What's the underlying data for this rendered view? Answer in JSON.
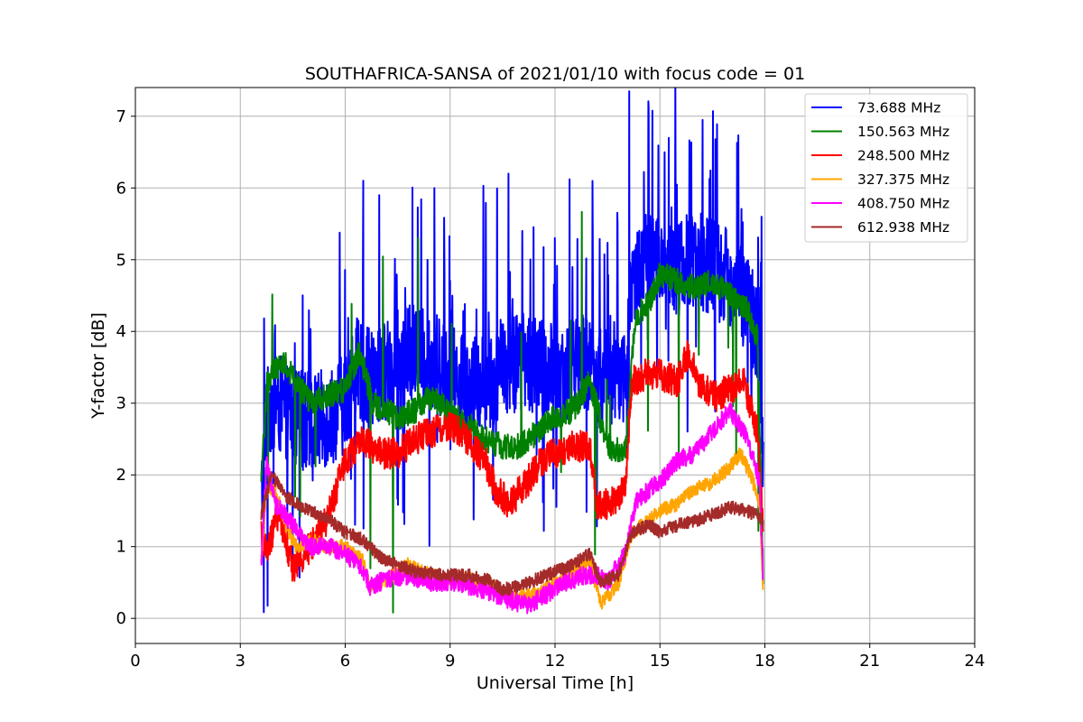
{
  "chart_data": {
    "type": "line",
    "title": "SOUTHAFRICA-SANSA of 2021/01/10 with focus code = 01",
    "xlabel": "Universal Time [h]",
    "ylabel": "Y-factor [dB]",
    "xlim": [
      0,
      24
    ],
    "ylim": [
      -0.35,
      7.4
    ],
    "xticks": [
      0,
      3,
      6,
      9,
      12,
      15,
      18,
      21,
      24
    ],
    "xtick_labels": [
      "0",
      "3",
      "6",
      "9",
      "12",
      "15",
      "18",
      "21",
      "24"
    ],
    "yticks": [
      0,
      1,
      2,
      3,
      4,
      5,
      6,
      7
    ],
    "ytick_labels": [
      "0",
      "1",
      "2",
      "3",
      "4",
      "5",
      "6",
      "7"
    ],
    "grid": true,
    "legend_position": "top-right",
    "series": [
      {
        "name": " 73.688 MHz",
        "color": "#0000ff",
        "noise": 0.7,
        "spikes": 0.09,
        "points": [
          [
            3.6,
            1.6
          ],
          [
            3.75,
            3.0
          ],
          [
            4.2,
            2.95
          ],
          [
            5.0,
            2.7
          ],
          [
            5.5,
            2.8
          ],
          [
            6.0,
            3.0
          ],
          [
            6.3,
            3.5
          ],
          [
            6.8,
            3.3
          ],
          [
            7.5,
            3.6
          ],
          [
            8.0,
            3.7
          ],
          [
            8.5,
            3.6
          ],
          [
            9.0,
            3.4
          ],
          [
            9.5,
            3.2
          ],
          [
            10.0,
            3.3
          ],
          [
            10.5,
            3.5
          ],
          [
            11.0,
            3.6
          ],
          [
            11.5,
            3.5
          ],
          [
            12.0,
            3.4
          ],
          [
            12.5,
            3.5
          ],
          [
            13.0,
            3.6
          ],
          [
            13.5,
            3.3
          ],
          [
            14.0,
            3.4
          ],
          [
            14.15,
            4.6
          ],
          [
            14.6,
            5.0
          ],
          [
            15.0,
            5.0
          ],
          [
            15.5,
            4.9
          ],
          [
            16.0,
            5.0
          ],
          [
            16.5,
            4.9
          ],
          [
            17.0,
            4.7
          ],
          [
            17.5,
            4.4
          ],
          [
            17.8,
            4.0
          ],
          [
            17.95,
            2.2
          ]
        ]
      },
      {
        "name": "150.563 MHz",
        "color": "#008000",
        "noise": 0.18,
        "spikes": 0.02,
        "points": [
          [
            3.6,
            1.8
          ],
          [
            3.75,
            3.3
          ],
          [
            4.2,
            3.6
          ],
          [
            4.6,
            3.3
          ],
          [
            5.0,
            3.0
          ],
          [
            5.5,
            3.1
          ],
          [
            6.0,
            3.2
          ],
          [
            6.4,
            3.7
          ],
          [
            6.8,
            3.0
          ],
          [
            7.5,
            2.8
          ],
          [
            8.0,
            2.9
          ],
          [
            8.5,
            3.1
          ],
          [
            9.0,
            2.85
          ],
          [
            9.5,
            2.7
          ],
          [
            10.0,
            2.5
          ],
          [
            10.5,
            2.4
          ],
          [
            11.0,
            2.4
          ],
          [
            11.5,
            2.6
          ],
          [
            12.0,
            2.8
          ],
          [
            12.5,
            2.9
          ],
          [
            13.0,
            3.3
          ],
          [
            13.5,
            2.4
          ],
          [
            14.0,
            2.3
          ],
          [
            14.3,
            4.2
          ],
          [
            14.7,
            4.4
          ],
          [
            15.0,
            4.8
          ],
          [
            15.5,
            4.7
          ],
          [
            16.0,
            4.6
          ],
          [
            16.5,
            4.7
          ],
          [
            17.0,
            4.5
          ],
          [
            17.5,
            4.3
          ],
          [
            17.8,
            3.9
          ],
          [
            17.95,
            0.6
          ]
        ]
      },
      {
        "name": "248.500 MHz",
        "color": "#ff0000",
        "noise": 0.22,
        "spikes": 0.0,
        "points": [
          [
            3.6,
            1.2
          ],
          [
            3.75,
            0.9
          ],
          [
            4.1,
            1.5
          ],
          [
            4.5,
            0.7
          ],
          [
            5.0,
            1.0
          ],
          [
            5.5,
            1.4
          ],
          [
            6.0,
            2.2
          ],
          [
            6.5,
            2.5
          ],
          [
            7.0,
            2.3
          ],
          [
            7.5,
            2.3
          ],
          [
            8.0,
            2.5
          ],
          [
            8.5,
            2.6
          ],
          [
            9.0,
            2.7
          ],
          [
            9.5,
            2.5
          ],
          [
            10.0,
            2.2
          ],
          [
            10.3,
            1.8
          ],
          [
            10.7,
            1.6
          ],
          [
            11.2,
            1.9
          ],
          [
            11.6,
            2.2
          ],
          [
            12.0,
            2.3
          ],
          [
            12.5,
            2.4
          ],
          [
            13.0,
            2.4
          ],
          [
            13.2,
            1.6
          ],
          [
            13.6,
            1.6
          ],
          [
            14.0,
            1.8
          ],
          [
            14.2,
            3.3
          ],
          [
            14.6,
            3.4
          ],
          [
            15.0,
            3.4
          ],
          [
            15.5,
            3.3
          ],
          [
            15.8,
            3.7
          ],
          [
            16.2,
            3.2
          ],
          [
            16.6,
            3.1
          ],
          [
            17.0,
            3.2
          ],
          [
            17.4,
            3.3
          ],
          [
            17.8,
            2.6
          ],
          [
            17.95,
            1.3
          ]
        ]
      },
      {
        "name": "327.375 MHz",
        "color": "#ffa500",
        "noise": 0.1,
        "spikes": 0.0,
        "points": [
          [
            3.6,
            0.8
          ],
          [
            3.75,
            1.8
          ],
          [
            4.0,
            1.8
          ],
          [
            4.3,
            1.3
          ],
          [
            4.6,
            1.0
          ],
          [
            5.0,
            1.1
          ],
          [
            5.5,
            1.0
          ],
          [
            6.0,
            1.0
          ],
          [
            6.5,
            0.8
          ],
          [
            6.7,
            0.45
          ],
          [
            7.2,
            0.55
          ],
          [
            7.8,
            0.75
          ],
          [
            8.2,
            0.65
          ],
          [
            8.8,
            0.55
          ],
          [
            9.5,
            0.55
          ],
          [
            10.0,
            0.5
          ],
          [
            10.5,
            0.35
          ],
          [
            11.0,
            0.3
          ],
          [
            11.5,
            0.35
          ],
          [
            12.0,
            0.5
          ],
          [
            12.5,
            0.65
          ],
          [
            13.0,
            0.8
          ],
          [
            13.3,
            0.2
          ],
          [
            13.8,
            0.45
          ],
          [
            14.2,
            1.2
          ],
          [
            14.5,
            1.3
          ],
          [
            15.0,
            1.5
          ],
          [
            15.5,
            1.6
          ],
          [
            16.0,
            1.8
          ],
          [
            16.5,
            1.9
          ],
          [
            17.0,
            2.1
          ],
          [
            17.3,
            2.3
          ],
          [
            17.6,
            2.0
          ],
          [
            17.85,
            1.6
          ],
          [
            17.95,
            0.4
          ]
        ]
      },
      {
        "name": "408.750 MHz",
        "color": "#ff00ff",
        "noise": 0.13,
        "spikes": 0.0,
        "points": [
          [
            3.6,
            0.7
          ],
          [
            3.75,
            2.2
          ],
          [
            4.0,
            1.6
          ],
          [
            4.5,
            1.3
          ],
          [
            5.0,
            1.0
          ],
          [
            5.5,
            1.0
          ],
          [
            6.0,
            0.9
          ],
          [
            6.5,
            0.7
          ],
          [
            6.7,
            0.45
          ],
          [
            7.2,
            0.55
          ],
          [
            7.8,
            0.6
          ],
          [
            8.5,
            0.5
          ],
          [
            9.0,
            0.5
          ],
          [
            9.5,
            0.45
          ],
          [
            10.0,
            0.4
          ],
          [
            10.5,
            0.3
          ],
          [
            11.0,
            0.2
          ],
          [
            11.3,
            0.2
          ],
          [
            11.8,
            0.35
          ],
          [
            12.3,
            0.5
          ],
          [
            12.8,
            0.6
          ],
          [
            13.2,
            0.6
          ],
          [
            13.5,
            0.5
          ],
          [
            14.0,
            0.9
          ],
          [
            14.3,
            1.6
          ],
          [
            14.7,
            1.8
          ],
          [
            15.0,
            1.9
          ],
          [
            15.5,
            2.2
          ],
          [
            16.0,
            2.3
          ],
          [
            16.5,
            2.6
          ],
          [
            17.0,
            2.9
          ],
          [
            17.5,
            2.5
          ],
          [
            17.85,
            1.9
          ],
          [
            17.95,
            0.5
          ]
        ]
      },
      {
        "name": "612.938 MHz",
        "color": "#a52a2a",
        "noise": 0.09,
        "spikes": 0.0,
        "points": [
          [
            3.6,
            1.45
          ],
          [
            3.9,
            2.0
          ],
          [
            4.3,
            1.7
          ],
          [
            5.0,
            1.5
          ],
          [
            5.5,
            1.4
          ],
          [
            6.0,
            1.2
          ],
          [
            6.5,
            1.1
          ],
          [
            7.0,
            0.85
          ],
          [
            7.5,
            0.75
          ],
          [
            8.0,
            0.65
          ],
          [
            9.0,
            0.6
          ],
          [
            9.5,
            0.6
          ],
          [
            10.0,
            0.55
          ],
          [
            10.5,
            0.4
          ],
          [
            11.0,
            0.45
          ],
          [
            11.5,
            0.55
          ],
          [
            12.0,
            0.65
          ],
          [
            12.5,
            0.75
          ],
          [
            13.0,
            0.9
          ],
          [
            13.3,
            0.5
          ],
          [
            13.8,
            0.6
          ],
          [
            14.2,
            1.2
          ],
          [
            14.7,
            1.3
          ],
          [
            15.0,
            1.2
          ],
          [
            15.5,
            1.3
          ],
          [
            16.0,
            1.35
          ],
          [
            16.5,
            1.45
          ],
          [
            17.0,
            1.55
          ],
          [
            17.5,
            1.5
          ],
          [
            17.9,
            1.4
          ],
          [
            17.95,
            1.3
          ]
        ]
      }
    ]
  }
}
